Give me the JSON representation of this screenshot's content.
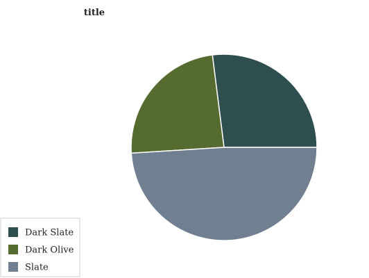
{
  "chart_data": {
    "type": "pie",
    "title": "title",
    "labels": [
      "Dark Slate",
      "Dark Olive",
      "Slate"
    ],
    "values": [
      27,
      24,
      49
    ],
    "colors": [
      "#2f4f4f",
      "#556b2f",
      "#708090"
    ],
    "start_angle_deg": 0,
    "direction": "counterclockwise",
    "legend_position": "bottom-left"
  }
}
